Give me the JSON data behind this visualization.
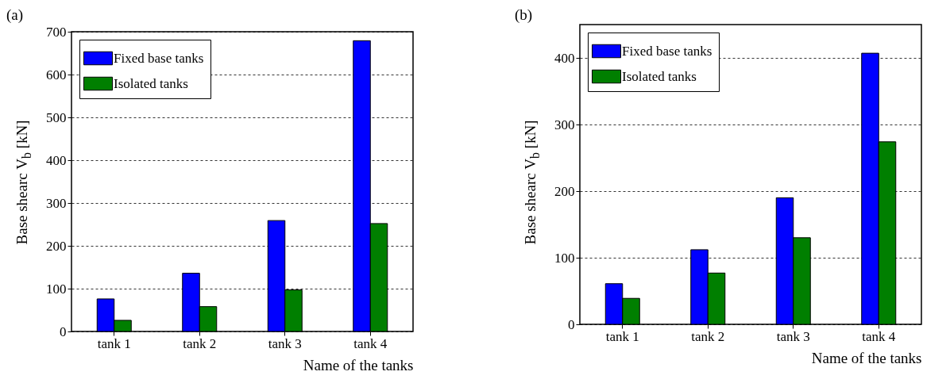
{
  "chart_data": [
    {
      "type": "bar",
      "title": "(a)",
      "xlabel": "Name of the tanks",
      "ylabel": "Base shearc V$_{b}$ [kN]",
      "categories": [
        "tank 1",
        "tank 2",
        "tank 3",
        "tank 4"
      ],
      "series": [
        {
          "name": "Fixed base tanks",
          "color": "#0000ff",
          "values": [
            76,
            136,
            259,
            679
          ]
        },
        {
          "name": "Isolated tanks",
          "color": "#007f00",
          "values": [
            26,
            58,
            97,
            252
          ]
        }
      ],
      "ylim": [
        0,
        700
      ],
      "yticks": [
        0,
        100,
        200,
        300,
        400,
        500,
        600,
        700
      ],
      "grid": "y",
      "legend": "top left"
    },
    {
      "type": "bar",
      "title": "(b)",
      "xlabel": "Name of the tanks",
      "ylabel": "Base shearc V$_{b}$ [kN]",
      "categories": [
        "tank 1",
        "tank 2",
        "tank 3",
        "tank 4"
      ],
      "series": [
        {
          "name": "Fixed base tanks",
          "color": "#0000ff",
          "values": [
            61,
            112,
            190,
            407
          ]
        },
        {
          "name": "Isolated tanks",
          "color": "#007f00",
          "values": [
            39,
            77,
            130,
            274
          ]
        }
      ],
      "ylim": [
        0,
        450
      ],
      "yticks": [
        0,
        100,
        200,
        300,
        400
      ],
      "grid": "y",
      "legend": "top left"
    }
  ]
}
